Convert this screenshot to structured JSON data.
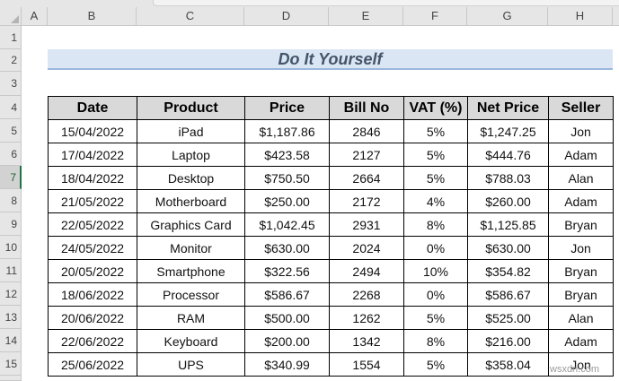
{
  "sheet": {
    "columns": [
      "A",
      "B",
      "C",
      "D",
      "E",
      "F",
      "G",
      "H"
    ],
    "rows": [
      "1",
      "2",
      "3",
      "4",
      "5",
      "6",
      "7",
      "8",
      "9",
      "10",
      "11",
      "12",
      "13",
      "14",
      "15"
    ],
    "selected_row": "7"
  },
  "title": "Do It Yourself",
  "table": {
    "headers": [
      "Date",
      "Product",
      "Price",
      "Bill No",
      "VAT (%)",
      "Net Price",
      "Seller"
    ],
    "rows": [
      [
        "15/04/2022",
        "iPad",
        "$1,187.86",
        "2846",
        "5%",
        "$1,247.25",
        "Jon"
      ],
      [
        "17/04/2022",
        "Laptop",
        "$423.58",
        "2127",
        "5%",
        "$444.76",
        "Adam"
      ],
      [
        "18/04/2022",
        "Desktop",
        "$750.50",
        "2664",
        "5%",
        "$788.03",
        "Alan"
      ],
      [
        "21/05/2022",
        "Motherboard",
        "$250.00",
        "2172",
        "4%",
        "$260.00",
        "Adam"
      ],
      [
        "22/05/2022",
        "Graphics Card",
        "$1,042.45",
        "2931",
        "8%",
        "$1,125.85",
        "Bryan"
      ],
      [
        "24/05/2022",
        "Monitor",
        "$630.00",
        "2024",
        "0%",
        "$630.00",
        "Jon"
      ],
      [
        "20/05/2022",
        "Smartphone",
        "$322.56",
        "2494",
        "10%",
        "$354.82",
        "Bryan"
      ],
      [
        "18/06/2022",
        "Processor",
        "$586.67",
        "2268",
        "0%",
        "$586.67",
        "Bryan"
      ],
      [
        "20/06/2022",
        "RAM",
        "$500.00",
        "1262",
        "5%",
        "$525.00",
        "Alan"
      ],
      [
        "22/06/2022",
        "Keyboard",
        "$200.00",
        "1342",
        "8%",
        "$216.00",
        "Adam"
      ],
      [
        "25/06/2022",
        "UPS",
        "$340.99",
        "1554",
        "5%",
        "$358.04",
        "Jon"
      ]
    ]
  },
  "watermark": "wsxdn.com",
  "colors": {
    "header_fill": "#d9d9d9",
    "title_fill": "#dae6f3",
    "title_text": "#44546a",
    "selection": "#217346"
  }
}
